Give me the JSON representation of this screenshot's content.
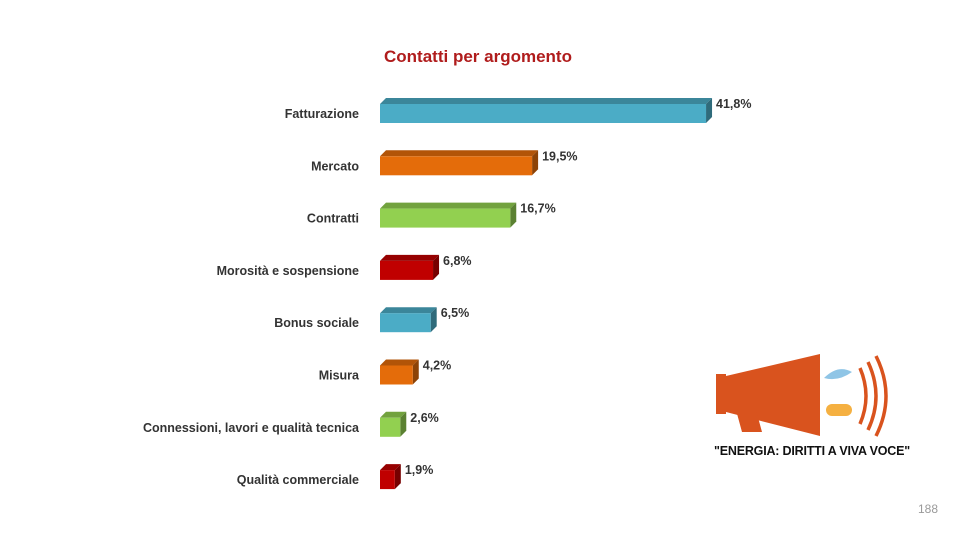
{
  "chart_data": {
    "type": "bar",
    "orientation": "horizontal",
    "title": "Contatti per argomento",
    "categories": [
      "Fatturazione",
      "Mercato",
      "Contratti",
      "Morosità e sospensione",
      "Bonus sociale",
      "Misura",
      "Connessioni, lavori e qualità tecnica",
      "Qualità commerciale"
    ],
    "values": [
      41.8,
      19.5,
      16.7,
      6.8,
      6.5,
      4.2,
      2.6,
      1.9
    ],
    "value_labels": [
      "41,8%",
      "19,5%",
      "16,7%",
      "6,8%",
      "6,5%",
      "4,2%",
      "2,6%",
      "1,9%"
    ],
    "unit": "%",
    "bar_colors": [
      "#4bacc6",
      "#e46c0a",
      "#92d050",
      "#c00000",
      "#4bacc6",
      "#e46c0a",
      "#92d050",
      "#c00000"
    ],
    "xlim": [
      0,
      45
    ],
    "grid": false,
    "legend": "none"
  },
  "logo": {
    "text": "\"ENERGIA: DIRITTI A VIVA VOCE\"",
    "icon": "megaphone-icon",
    "colors": {
      "megaphone": "#d9531e",
      "waves": "#d9531e",
      "drop": "#8fc5e6",
      "flame": "#f5b041"
    }
  },
  "page_number": "188"
}
